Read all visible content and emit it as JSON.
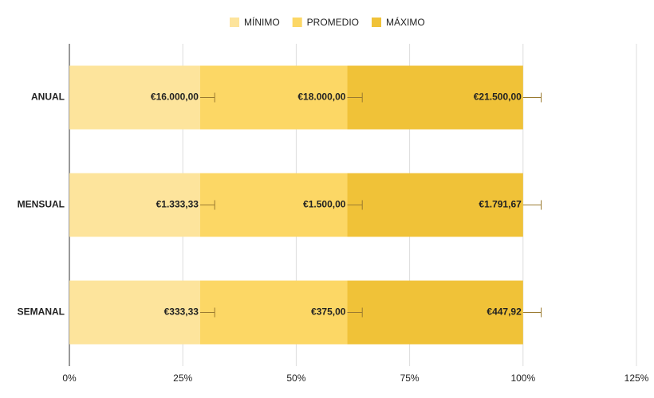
{
  "chart_data": {
    "type": "stacked-hbar-100",
    "categories": [
      "ANUAL",
      "MENSUAL",
      "SEMANAL"
    ],
    "series": [
      {
        "name": "MÍNIMO",
        "color": "#fde49c",
        "values": [
          28.83,
          28.83,
          28.83
        ],
        "value_labels": [
          "€16.000,00",
          "€1.333,33",
          "€333,33"
        ],
        "errors": [
          3.2,
          3.2,
          3.2
        ]
      },
      {
        "name": "PROMEDIO",
        "color": "#fcd765",
        "values": [
          32.43,
          32.43,
          32.43
        ],
        "value_labels": [
          "€18.000,00",
          "€1.500,00",
          "€375,00"
        ],
        "errors": [
          3.3,
          3.3,
          3.3
        ]
      },
      {
        "name": "MÁXIMO",
        "color": "#f0c238",
        "values": [
          38.74,
          38.74,
          38.74
        ],
        "value_labels": [
          "€21.500,00",
          "€1.791,67",
          "€447,92"
        ],
        "errors": [
          4.0,
          4.0,
          4.0
        ]
      }
    ],
    "xlim": [
      0,
      125
    ],
    "xticks": [
      {
        "value": 0,
        "label": "0%"
      },
      {
        "value": 25,
        "label": "25%"
      },
      {
        "value": 50,
        "label": "50%"
      },
      {
        "value": 75,
        "label": "75%"
      },
      {
        "value": 100,
        "label": "100%"
      },
      {
        "value": 125,
        "label": "125%"
      }
    ],
    "grid": true,
    "legend": "top"
  }
}
